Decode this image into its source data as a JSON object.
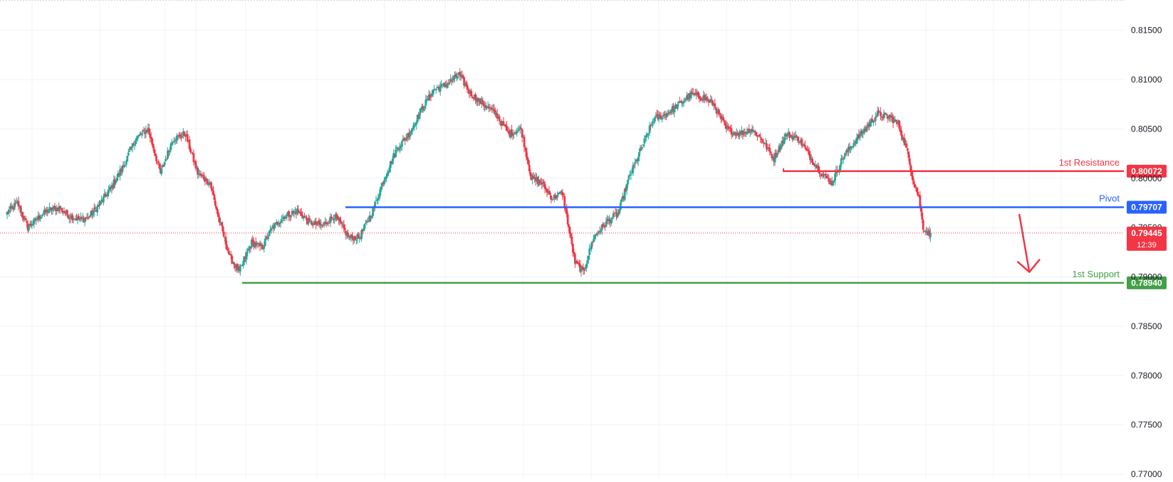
{
  "chart_data": {
    "type": "candlestick",
    "title": "",
    "xlabel": "",
    "ylabel": "",
    "ylim": [
      0.77,
      0.8175
    ],
    "y_ticks": [
      "0.81500",
      "0.81000",
      "0.80500",
      "0.80000",
      "0.79500",
      "0.79000",
      "0.78500",
      "0.78000",
      "0.77500",
      "0.77000"
    ],
    "grid": true,
    "colors": {
      "up": "#26a69a",
      "down": "#f23645",
      "resistance": "#f23645",
      "pivot": "#2962ff",
      "support": "#43a047",
      "last_price": "#f23645"
    },
    "levels": [
      {
        "label": "1st Resistance",
        "value": 0.80072,
        "value_text": "0.80072",
        "color": "#f23645"
      },
      {
        "label": "Pivot",
        "value": 0.79707,
        "value_text": "0.79707",
        "color": "#2962ff"
      },
      {
        "label": "1st Support",
        "value": 0.7894,
        "value_text": "0.78940",
        "color": "#43a047"
      }
    ],
    "last_price": {
      "value": 0.79445,
      "value_text": "0.79445",
      "countdown": "12:39"
    },
    "annotation": {
      "type": "arrow",
      "direction": "down",
      "color": "#f23645",
      "from": [
        0.797,
        0.7963
      ],
      "to": [
        0.797,
        0.7905
      ]
    },
    "waypoints": [
      [
        0,
        0.7965
      ],
      [
        10,
        0.7975
      ],
      [
        20,
        0.795
      ],
      [
        30,
        0.796
      ],
      [
        40,
        0.7968
      ],
      [
        50,
        0.797
      ],
      [
        60,
        0.7962
      ],
      [
        70,
        0.7958
      ],
      [
        78,
        0.796
      ],
      [
        88,
        0.7972
      ],
      [
        100,
        0.799
      ],
      [
        112,
        0.8012
      ],
      [
        124,
        0.804
      ],
      [
        136,
        0.805
      ],
      [
        148,
        0.8005
      ],
      [
        160,
        0.804
      ],
      [
        172,
        0.8045
      ],
      [
        184,
        0.8005
      ],
      [
        196,
        0.7995
      ],
      [
        204,
        0.796
      ],
      [
        215,
        0.792
      ],
      [
        224,
        0.7905
      ],
      [
        236,
        0.7935
      ],
      [
        246,
        0.793
      ],
      [
        256,
        0.795
      ],
      [
        268,
        0.7962
      ],
      [
        280,
        0.7967
      ],
      [
        292,
        0.7955
      ],
      [
        304,
        0.7952
      ],
      [
        316,
        0.7962
      ],
      [
        330,
        0.794
      ],
      [
        340,
        0.794
      ],
      [
        352,
        0.7965
      ],
      [
        364,
        0.8
      ],
      [
        376,
        0.803
      ],
      [
        388,
        0.8045
      ],
      [
        400,
        0.807
      ],
      [
        412,
        0.809
      ],
      [
        424,
        0.8095
      ],
      [
        436,
        0.8105
      ],
      [
        448,
        0.8085
      ],
      [
        460,
        0.8075
      ],
      [
        472,
        0.8065
      ],
      [
        484,
        0.8045
      ],
      [
        496,
        0.805
      ],
      [
        506,
        0.8
      ],
      [
        516,
        0.7995
      ],
      [
        526,
        0.798
      ],
      [
        536,
        0.7985
      ],
      [
        548,
        0.7915
      ],
      [
        556,
        0.7905
      ],
      [
        566,
        0.794
      ],
      [
        578,
        0.7955
      ],
      [
        590,
        0.7965
      ],
      [
        600,
        0.8
      ],
      [
        612,
        0.803
      ],
      [
        624,
        0.806
      ],
      [
        636,
        0.8065
      ],
      [
        648,
        0.8075
      ],
      [
        660,
        0.8085
      ],
      [
        672,
        0.8082
      ],
      [
        682,
        0.8075
      ],
      [
        694,
        0.805
      ],
      [
        706,
        0.8045
      ],
      [
        718,
        0.805
      ],
      [
        728,
        0.804
      ],
      [
        740,
        0.802
      ],
      [
        752,
        0.8045
      ],
      [
        764,
        0.804
      ],
      [
        776,
        0.802
      ],
      [
        786,
        0.8005
      ],
      [
        796,
        0.7995
      ],
      [
        806,
        0.802
      ],
      [
        816,
        0.8035
      ],
      [
        828,
        0.805
      ],
      [
        840,
        0.8065
      ],
      [
        852,
        0.8062
      ],
      [
        860,
        0.8055
      ],
      [
        868,
        0.803
      ],
      [
        874,
        0.8
      ],
      [
        880,
        0.798
      ],
      [
        884,
        0.795
      ],
      [
        891,
        0.7942
      ]
    ]
  }
}
